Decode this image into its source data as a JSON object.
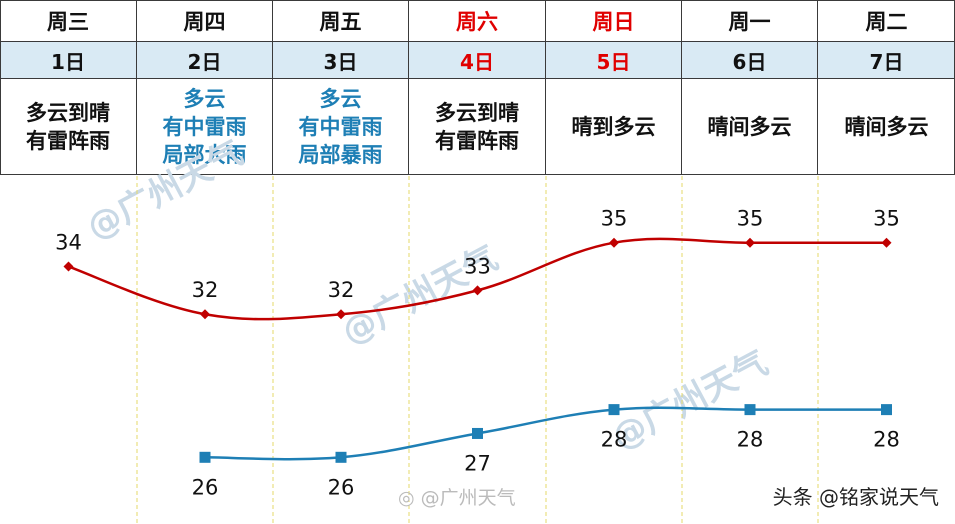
{
  "days": [
    {
      "label": "周三",
      "date": "1日",
      "weather": [
        "多云到晴",
        "有雷阵雨"
      ],
      "highlight": false,
      "weather_color": "black"
    },
    {
      "label": "周四",
      "date": "2日",
      "weather": [
        "多云",
        "有中雷雨",
        "局部大雨"
      ],
      "highlight": false,
      "weather_color": "blue"
    },
    {
      "label": "周五",
      "date": "3日",
      "weather": [
        "多云",
        "有中雷雨",
        "局部暴雨"
      ],
      "highlight": false,
      "weather_color": "blue"
    },
    {
      "label": "周六",
      "date": "4日",
      "weather": [
        "多云到晴",
        "有雷阵雨"
      ],
      "highlight": true,
      "weather_color": "black"
    },
    {
      "label": "周日",
      "date": "5日",
      "weather": [
        "晴到多云"
      ],
      "highlight": true,
      "weather_color": "black"
    },
    {
      "label": "周一",
      "date": "6日",
      "weather": [
        "晴间多云"
      ],
      "highlight": false,
      "weather_color": "black"
    },
    {
      "label": "周二",
      "date": "7日",
      "weather": [
        "晴间多云"
      ],
      "highlight": false,
      "weather_color": "black"
    }
  ],
  "colors": {
    "high_line": "#c00000",
    "low_line": "#1e7fb5",
    "weekend": "#e00000",
    "grid": "#e6d96a"
  },
  "watermark": "@广州天气",
  "weibo_mark": "@广州天气",
  "footer": {
    "source": "头条",
    "author": "@铭家说天气"
  },
  "chart_data": {
    "type": "line",
    "categories": [
      "周三",
      "周四",
      "周五",
      "周六",
      "周日",
      "周一",
      "周二"
    ],
    "series": [
      {
        "name": "",
        "values": [
          34,
          32,
          32,
          33,
          35,
          35,
          35
        ]
      },
      {
        "name": "",
        "values": [
          null,
          26,
          26,
          27,
          28,
          28,
          28
        ]
      }
    ],
    "ylim": [
      24,
      37
    ],
    "grid": "vertical dashed"
  }
}
